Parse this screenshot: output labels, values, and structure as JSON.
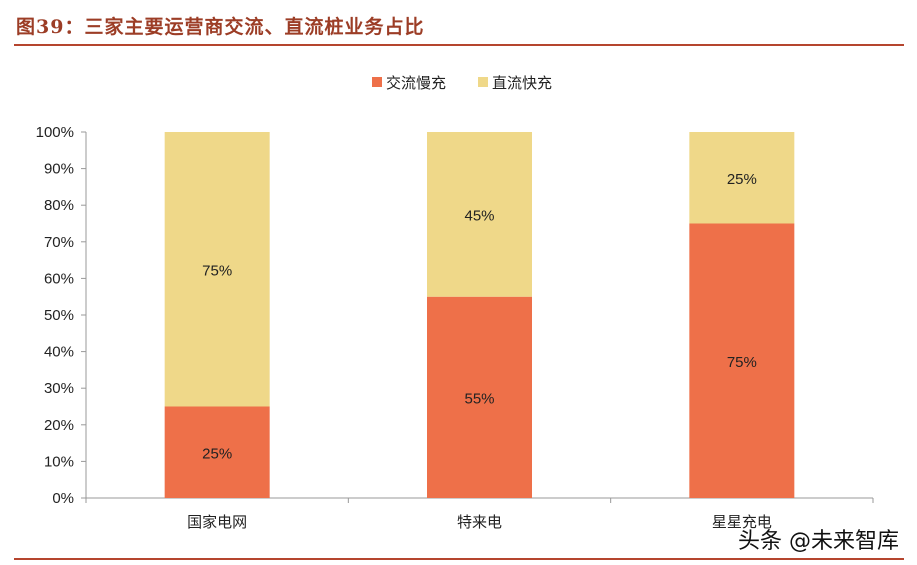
{
  "figure": {
    "title": "图39：三家主要运营商交流、直流桩业务占比",
    "watermark": "头条 @未来智库"
  },
  "chart_data": {
    "type": "bar",
    "stacked": true,
    "categories": [
      "国家电网",
      "特来电",
      "星星充电"
    ],
    "series": [
      {
        "name": "交流慢充",
        "values": [
          25,
          55,
          75
        ],
        "labels": [
          "25%",
          "55%",
          "75%"
        ],
        "color": "#ee7049"
      },
      {
        "name": "直流快充",
        "values": [
          75,
          45,
          25
        ],
        "labels": [
          "75%",
          "45%",
          "25%"
        ],
        "color": "#efd889"
      }
    ],
    "ylim": [
      0,
      100
    ],
    "yticks": [
      0,
      10,
      20,
      30,
      40,
      50,
      60,
      70,
      80,
      90,
      100
    ],
    "ytick_labels": [
      "0%",
      "10%",
      "20%",
      "30%",
      "40%",
      "50%",
      "60%",
      "70%",
      "80%",
      "90%",
      "100%"
    ],
    "legend_position": "top-center",
    "grid": false
  }
}
